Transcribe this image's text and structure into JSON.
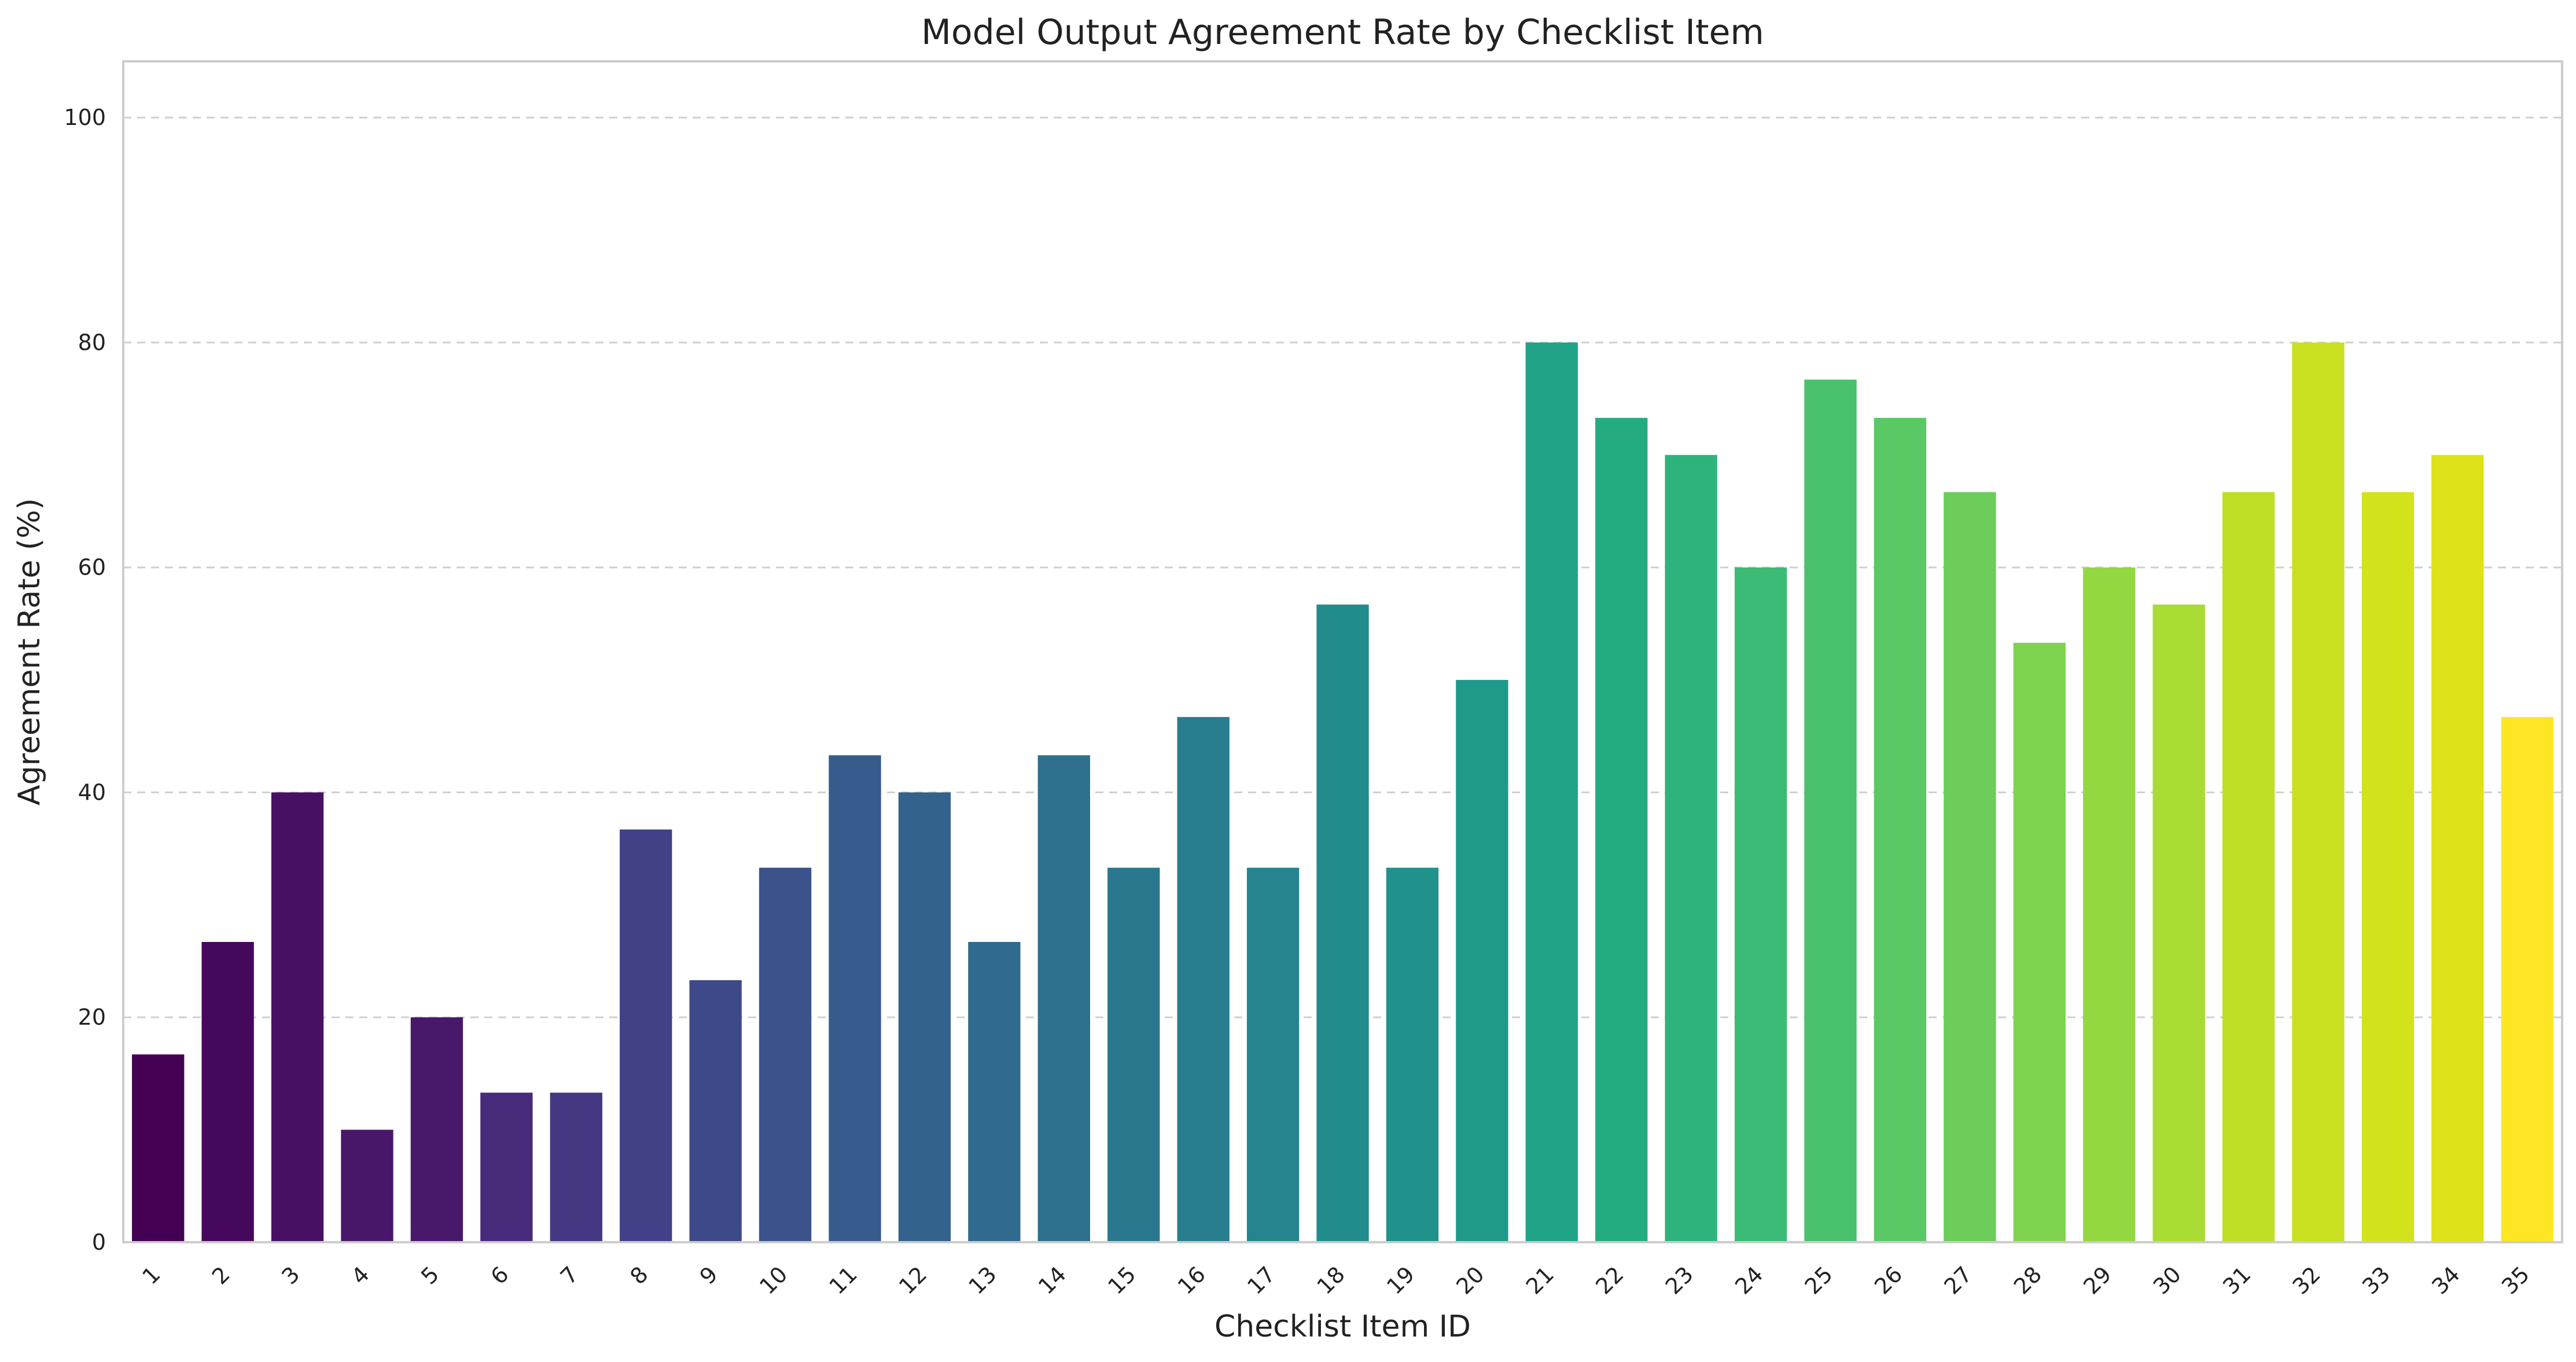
{
  "chart_data": {
    "type": "bar",
    "title": "Model Output Agreement Rate by Checklist Item",
    "xlabel": "Checklist Item ID",
    "ylabel": "Agreement Rate (%)",
    "ylim": [
      0,
      105
    ],
    "yticks": [
      0,
      20,
      40,
      60,
      80,
      100
    ],
    "grid": "horizontal dashed",
    "legend": "none",
    "palette": "viridis",
    "categories": [
      "1",
      "2",
      "3",
      "4",
      "5",
      "6",
      "7",
      "8",
      "9",
      "10",
      "11",
      "12",
      "13",
      "14",
      "15",
      "16",
      "17",
      "18",
      "19",
      "20",
      "21",
      "22",
      "23",
      "24",
      "25",
      "26",
      "27",
      "28",
      "29",
      "30",
      "31",
      "32",
      "33",
      "34",
      "35"
    ],
    "values": [
      16.7,
      26.7,
      40.0,
      10.0,
      20.0,
      13.3,
      13.3,
      36.7,
      23.3,
      33.3,
      43.3,
      40.0,
      26.7,
      43.3,
      33.3,
      46.7,
      33.3,
      56.7,
      33.3,
      50.0,
      80.0,
      73.3,
      70.0,
      60.0,
      76.7,
      73.3,
      66.7,
      53.3,
      60.0,
      56.7,
      66.7,
      80.0,
      66.7,
      70.0,
      46.7
    ],
    "colors": [
      "#440154",
      "#46085c",
      "#471063",
      "#481769",
      "#48186a",
      "#472a7a",
      "#453781",
      "#424086",
      "#3e4989",
      "#3b528b",
      "#375b8d",
      "#33638d",
      "#306a8e",
      "#2d708e",
      "#2a788e",
      "#287d8e",
      "#25848e",
      "#228c8d",
      "#21918c",
      "#1f998a",
      "#20a386",
      "#25ab82",
      "#2eb37c",
      "#3bbb75",
      "#4ac16d",
      "#5ac864",
      "#6ccd5a",
      "#7fd34e",
      "#93d741",
      "#a8db34",
      "#bddf26",
      "#c8e020",
      "#d2e21b",
      "#dde318",
      "#fde725"
    ]
  }
}
